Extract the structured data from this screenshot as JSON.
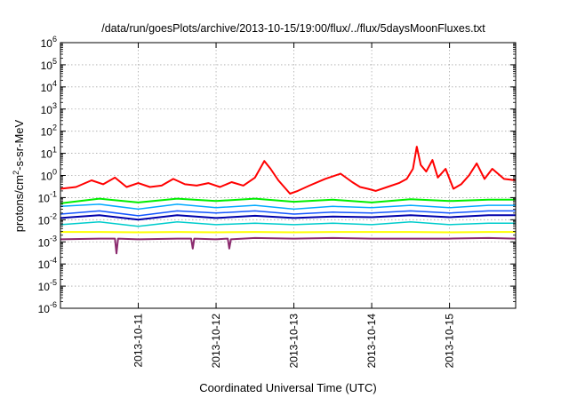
{
  "chart_data": {
    "type": "line",
    "title": "/data/run/goesPlots/archive/2013-10-15/19:00/flux/../flux/5daysMoonFluxes.txt",
    "xlabel": "Coordinated Universal Time (UTC)",
    "ylabel": "protons/cm2-s-sr-MeV",
    "ylabel_parts": [
      "protons/cm",
      "2",
      "-s-sr-MeV"
    ],
    "yscale": "log",
    "ylim": [
      1e-06,
      1000000.0
    ],
    "y_ticks": [
      {
        "base": "10",
        "exp": "6"
      },
      {
        "base": "10",
        "exp": "5"
      },
      {
        "base": "10",
        "exp": "4"
      },
      {
        "base": "10",
        "exp": "3"
      },
      {
        "base": "10",
        "exp": "2"
      },
      {
        "base": "10",
        "exp": "1"
      },
      {
        "base": "10",
        "exp": "0"
      },
      {
        "base": "10",
        "exp": "-1"
      },
      {
        "base": "10",
        "exp": "-2"
      },
      {
        "base": "10",
        "exp": "-3"
      },
      {
        "base": "10",
        "exp": "-4"
      },
      {
        "base": "10",
        "exp": "-5"
      },
      {
        "base": "10",
        "exp": "-6"
      }
    ],
    "x_unit": "days",
    "xlim": [
      0,
      5.85
    ],
    "x_ticks": [
      {
        "x": 1,
        "label": "2013-10-11"
      },
      {
        "x": 2,
        "label": "2013-10-12"
      },
      {
        "x": 3,
        "label": "2013-10-13"
      },
      {
        "x": 4,
        "label": "2013-10-14"
      },
      {
        "x": 5,
        "label": "2013-10-15"
      }
    ],
    "grid": true,
    "series": [
      {
        "color": "#ff0000",
        "width": 2,
        "x": [
          0,
          0.2,
          0.4,
          0.55,
          0.7,
          0.85,
          1.0,
          1.15,
          1.3,
          1.45,
          1.6,
          1.75,
          1.9,
          2.05,
          2.2,
          2.35,
          2.5,
          2.62,
          2.7,
          2.8,
          2.95,
          3.05,
          3.2,
          3.4,
          3.6,
          3.75,
          3.85,
          3.95,
          4.05,
          4.2,
          4.35,
          4.45,
          4.53,
          4.58,
          4.63,
          4.7,
          4.78,
          4.85,
          4.95,
          5.05,
          5.15,
          5.25,
          5.35,
          5.45,
          5.55,
          5.7,
          5.85
        ],
        "y": [
          0.25,
          0.3,
          0.6,
          0.4,
          0.8,
          0.3,
          0.45,
          0.3,
          0.35,
          0.7,
          0.4,
          0.35,
          0.45,
          0.3,
          0.5,
          0.35,
          0.8,
          4.5,
          2.0,
          0.6,
          0.15,
          0.2,
          0.35,
          0.7,
          1.2,
          0.5,
          0.3,
          0.25,
          0.2,
          0.3,
          0.45,
          0.7,
          2.0,
          20.0,
          3.0,
          1.5,
          5.0,
          0.8,
          2.0,
          0.25,
          0.4,
          1.0,
          3.5,
          0.7,
          2.0,
          0.7,
          0.6
        ]
      },
      {
        "color": "#00ee00",
        "width": 2,
        "x": [
          0,
          0.5,
          1.0,
          1.5,
          2.0,
          2.5,
          3.0,
          3.5,
          4.0,
          4.5,
          5.0,
          5.5,
          5.85
        ],
        "y": [
          0.055,
          0.09,
          0.06,
          0.09,
          0.07,
          0.09,
          0.065,
          0.08,
          0.06,
          0.085,
          0.07,
          0.08,
          0.08
        ]
      },
      {
        "color": "#00aaff",
        "width": 1.5,
        "x": [
          0,
          0.5,
          1.0,
          1.5,
          2.0,
          2.5,
          3.0,
          3.5,
          4.0,
          4.5,
          5.0,
          5.5,
          5.85
        ],
        "y": [
          0.04,
          0.05,
          0.03,
          0.05,
          0.035,
          0.045,
          0.03,
          0.04,
          0.035,
          0.045,
          0.035,
          0.045,
          0.045
        ]
      },
      {
        "color": "#1155ff",
        "width": 1.5,
        "x": [
          0,
          0.5,
          1.0,
          1.5,
          2.0,
          2.5,
          3.0,
          3.5,
          4.0,
          4.5,
          5.0,
          5.5,
          5.85
        ],
        "y": [
          0.018,
          0.025,
          0.015,
          0.025,
          0.02,
          0.025,
          0.018,
          0.022,
          0.02,
          0.025,
          0.02,
          0.025,
          0.025
        ]
      },
      {
        "color": "#0000aa",
        "width": 2,
        "x": [
          0,
          0.5,
          1.0,
          1.5,
          2.0,
          2.5,
          3.0,
          3.5,
          4.0,
          4.5,
          5.0,
          5.5,
          5.85
        ],
        "y": [
          0.012,
          0.016,
          0.01,
          0.016,
          0.012,
          0.015,
          0.012,
          0.014,
          0.013,
          0.016,
          0.013,
          0.016,
          0.016
        ]
      },
      {
        "color": "#00cccc",
        "width": 1.5,
        "x": [
          0,
          0.5,
          1.0,
          1.5,
          2.0,
          2.5,
          3.0,
          3.5,
          4.0,
          4.5,
          5.0,
          5.5,
          5.85
        ],
        "y": [
          0.006,
          0.008,
          0.005,
          0.008,
          0.006,
          0.007,
          0.006,
          0.007,
          0.006,
          0.008,
          0.006,
          0.007,
          0.007
        ]
      },
      {
        "color": "#ffff00",
        "width": 2,
        "x": [
          0,
          0.5,
          1.0,
          1.5,
          2.0,
          2.5,
          3.0,
          3.5,
          4.0,
          4.5,
          5.0,
          5.5,
          5.85
        ],
        "y": [
          0.0028,
          0.0028,
          0.0027,
          0.0028,
          0.0027,
          0.0028,
          0.0027,
          0.0028,
          0.0028,
          0.0028,
          0.0027,
          0.0028,
          0.0028
        ]
      },
      {
        "color": "#8b2a6e",
        "width": 2,
        "x": [
          0,
          0.5,
          0.7,
          0.72,
          0.74,
          1.0,
          1.5,
          1.68,
          1.7,
          1.72,
          2.0,
          2.15,
          2.17,
          2.19,
          2.5,
          3.0,
          3.5,
          4.0,
          4.5,
          5.0,
          5.5,
          5.85
        ],
        "y": [
          0.0013,
          0.0014,
          0.0014,
          0.0003,
          0.0014,
          0.0013,
          0.0014,
          0.0014,
          0.0005,
          0.0014,
          0.0013,
          0.0014,
          0.0005,
          0.0013,
          0.0015,
          0.0014,
          0.0015,
          0.0014,
          0.0014,
          0.0014,
          0.0015,
          0.0014
        ]
      }
    ]
  }
}
